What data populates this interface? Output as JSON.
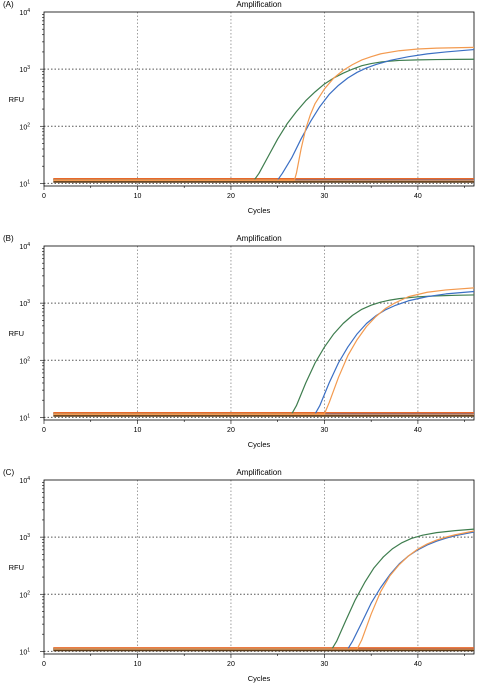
{
  "chart_data": [
    {
      "panel_label": "(A)",
      "type": "line",
      "title": "Amplification",
      "xlabel": "Cycles",
      "ylabel": "RFU",
      "xlim": [
        0,
        46
      ],
      "ylog": true,
      "ylim": [
        9,
        10000
      ],
      "xticks": [
        "0",
        "10",
        "20",
        "30",
        "40"
      ],
      "ytick_labels": [
        {
          "base": "10",
          "exp": "1"
        },
        {
          "base": "10",
          "exp": "2"
        },
        {
          "base": "10",
          "exp": "3"
        },
        {
          "base": "10",
          "exp": "4"
        }
      ],
      "grid": true,
      "threshold": {
        "y": 12,
        "color": "#e8692a"
      },
      "baselines": [
        {
          "y": 11.8,
          "color": "#2f6e3c"
        },
        {
          "y": 11.3,
          "color": "#3b6fc4"
        },
        {
          "y": 11.0,
          "color": "#f4a05a"
        },
        {
          "y": 10.6,
          "color": "#5a3b1a"
        }
      ],
      "series": [
        {
          "color": "#3e7d4e",
          "x": [
            1,
            22.5,
            23,
            24,
            25,
            26,
            27,
            28,
            29,
            30,
            31,
            32,
            33,
            34,
            35,
            36,
            37,
            38,
            40,
            42,
            44,
            46
          ],
          "y": [
            11.5,
            11.5,
            15,
            30,
            60,
            110,
            180,
            280,
            400,
            550,
            700,
            850,
            1000,
            1150,
            1250,
            1330,
            1380,
            1420,
            1450,
            1470,
            1480,
            1490
          ]
        },
        {
          "color": "#3b6fc4",
          "x": [
            1,
            25,
            25.5,
            26.5,
            27.5,
            28.5,
            29.5,
            30.5,
            31.5,
            32.5,
            33.5,
            34.5,
            35.5,
            37,
            39,
            41,
            43,
            46
          ],
          "y": [
            11.5,
            11.5,
            15,
            28,
            60,
            120,
            220,
            360,
            520,
            700,
            880,
            1050,
            1200,
            1420,
            1650,
            1850,
            2000,
            2200
          ]
        },
        {
          "color": "#f39a4f",
          "x": [
            1,
            26.8,
            27,
            27.5,
            28,
            28.5,
            29,
            30,
            31,
            32,
            33,
            34,
            35,
            36,
            38,
            40,
            42,
            44,
            46
          ],
          "y": [
            11.5,
            11.5,
            15,
            40,
            90,
            160,
            250,
            450,
            700,
            950,
            1200,
            1450,
            1650,
            1850,
            2100,
            2250,
            2330,
            2370,
            2400
          ]
        }
      ]
    },
    {
      "panel_label": "(B)",
      "type": "line",
      "title": "Amplification",
      "xlabel": "Cycles",
      "ylabel": "RFU",
      "xlim": [
        0,
        46
      ],
      "ylog": true,
      "ylim": [
        9,
        10000
      ],
      "xticks": [
        "0",
        "10",
        "20",
        "30",
        "40"
      ],
      "ytick_labels": [
        {
          "base": "10",
          "exp": "1"
        },
        {
          "base": "10",
          "exp": "2"
        },
        {
          "base": "10",
          "exp": "3"
        },
        {
          "base": "10",
          "exp": "4"
        }
      ],
      "grid": true,
      "threshold": {
        "y": 12,
        "color": "#e8692a"
      },
      "baselines": [
        {
          "y": 11.8,
          "color": "#2f6e3c"
        },
        {
          "y": 11.3,
          "color": "#3b6fc4"
        },
        {
          "y": 11.0,
          "color": "#f4a05a"
        },
        {
          "y": 10.6,
          "color": "#5a3b1a"
        }
      ],
      "series": [
        {
          "color": "#3e7d4e",
          "x": [
            1,
            26.5,
            27,
            28,
            29,
            30,
            31,
            32,
            33,
            34,
            35,
            36,
            37,
            38,
            40,
            42,
            44,
            46
          ],
          "y": [
            11.5,
            11.5,
            16,
            40,
            90,
            170,
            290,
            440,
            610,
            780,
            920,
            1040,
            1130,
            1200,
            1290,
            1340,
            1370,
            1390
          ]
        },
        {
          "color": "#3b6fc4",
          "x": [
            1,
            29,
            29.5,
            30.5,
            31.5,
            32.5,
            33.5,
            34.5,
            35.5,
            36.5,
            37.5,
            39,
            41,
            43,
            46
          ],
          "y": [
            11.5,
            11.5,
            16,
            40,
            90,
            170,
            290,
            440,
            600,
            760,
            900,
            1100,
            1300,
            1450,
            1600
          ]
        },
        {
          "color": "#f39a4f",
          "x": [
            1,
            30,
            30.5,
            31.5,
            32.5,
            33.5,
            34.5,
            35.5,
            36.5,
            37.5,
            39,
            41,
            43,
            46
          ],
          "y": [
            11.5,
            11.5,
            18,
            50,
            120,
            230,
            390,
            580,
            800,
            1000,
            1300,
            1550,
            1700,
            1850
          ]
        }
      ]
    },
    {
      "panel_label": "(C)",
      "type": "line",
      "title": "Amplification",
      "xlabel": "Cycles",
      "ylabel": "RFU",
      "xlim": [
        0,
        46
      ],
      "ylog": true,
      "ylim": [
        9,
        10000
      ],
      "xticks": [
        "0",
        "10",
        "20",
        "30",
        "40"
      ],
      "ytick_labels": [
        {
          "base": "10",
          "exp": "1"
        },
        {
          "base": "10",
          "exp": "2"
        },
        {
          "base": "10",
          "exp": "3"
        },
        {
          "base": "10",
          "exp": "4"
        }
      ],
      "grid": true,
      "threshold": {
        "y": 11.5,
        "color": "#e8692a"
      },
      "baselines": [
        {
          "y": 11.3,
          "color": "#2f6e3c"
        },
        {
          "y": 11.0,
          "color": "#3b6fc4"
        },
        {
          "y": 10.7,
          "color": "#f4a05a"
        },
        {
          "y": 10.4,
          "color": "#5a3b1a"
        }
      ],
      "series": [
        {
          "color": "#3e7d4e",
          "x": [
            1,
            30.8,
            31.3,
            32.3,
            33.3,
            34.3,
            35.3,
            36.3,
            37.3,
            38.3,
            39.3,
            40.5,
            42,
            44,
            46
          ],
          "y": [
            11,
            11,
            15,
            35,
            80,
            160,
            290,
            450,
            630,
            800,
            950,
            1080,
            1200,
            1300,
            1380
          ]
        },
        {
          "color": "#3b6fc4",
          "x": [
            1,
            32.5,
            33,
            34,
            35,
            36,
            37,
            38,
            39,
            40,
            41,
            42,
            43,
            44,
            46
          ],
          "y": [
            11,
            11,
            15,
            32,
            70,
            130,
            220,
            340,
            470,
            600,
            730,
            850,
            960,
            1060,
            1230
          ]
        },
        {
          "color": "#f39a4f",
          "x": [
            1,
            33.5,
            34,
            35,
            36,
            37,
            38,
            39,
            40,
            41,
            42,
            43,
            44,
            46
          ],
          "y": [
            11,
            11,
            16,
            45,
            110,
            210,
            330,
            470,
            620,
            760,
            890,
            1000,
            1100,
            1280
          ]
        }
      ]
    }
  ]
}
